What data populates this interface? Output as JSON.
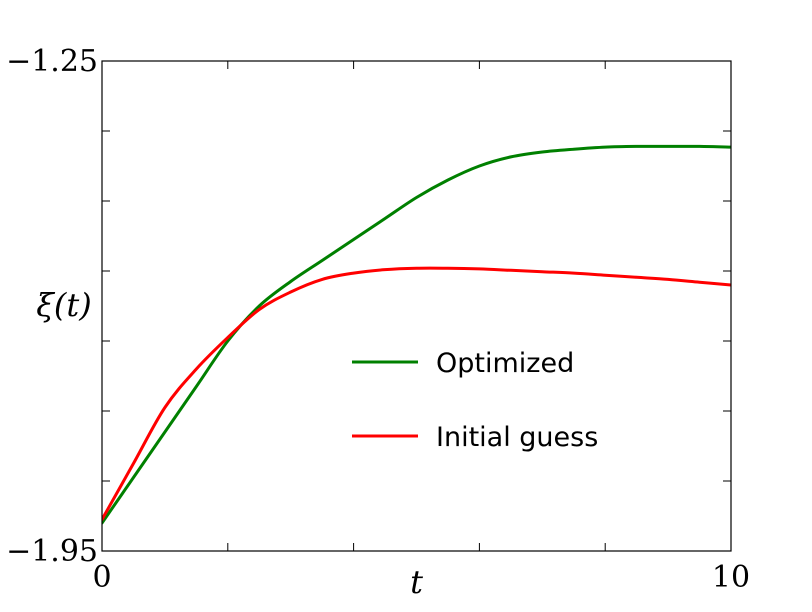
{
  "chart_data": {
    "type": "line",
    "title": "",
    "xlabel": "t",
    "ylabel": "ξ(t)",
    "xlim": [
      0,
      10
    ],
    "ylim": [
      -1.95,
      -1.25
    ],
    "x_ticks": [
      0,
      10
    ],
    "x_tick_labels": [
      "0",
      "10"
    ],
    "y_ticks": [
      -1.25,
      -1.95
    ],
    "y_tick_labels": [
      "−1.25",
      "−1.95"
    ],
    "grid": false,
    "legend": "center-right",
    "series": [
      {
        "name": "Optimized",
        "color": "#008000",
        "x": [
          0,
          0.5,
          1,
          1.5,
          2,
          2.5,
          3,
          3.5,
          4,
          4.5,
          5,
          5.5,
          6,
          6.5,
          7,
          7.5,
          8,
          8.5,
          9,
          9.5,
          10
        ],
        "y": [
          -1.91,
          -1.845,
          -1.78,
          -1.715,
          -1.65,
          -1.6,
          -1.565,
          -1.535,
          -1.505,
          -1.475,
          -1.445,
          -1.42,
          -1.4,
          -1.387,
          -1.38,
          -1.376,
          -1.373,
          -1.372,
          -1.372,
          -1.372,
          -1.373
        ]
      },
      {
        "name": "Initial guess",
        "color": "#ff0000",
        "x": [
          0,
          0.5,
          1,
          1.5,
          2,
          2.5,
          3,
          3.5,
          4,
          4.5,
          5,
          5.5,
          6,
          6.5,
          7,
          7.5,
          8,
          8.5,
          9,
          9.5,
          10
        ],
        "y": [
          -1.905,
          -1.825,
          -1.745,
          -1.69,
          -1.645,
          -1.605,
          -1.58,
          -1.562,
          -1.553,
          -1.548,
          -1.546,
          -1.546,
          -1.547,
          -1.549,
          -1.551,
          -1.553,
          -1.556,
          -1.559,
          -1.562,
          -1.566,
          -1.57
        ]
      }
    ]
  }
}
